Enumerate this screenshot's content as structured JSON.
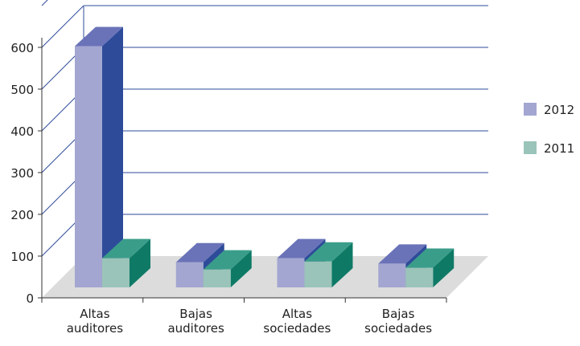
{
  "chart_data": {
    "type": "bar",
    "title": "",
    "xlabel": "",
    "ylabel": "",
    "categories": [
      "Altas auditores",
      "Bajas auditores",
      "Altas sociedades",
      "Bajas sociedades"
    ],
    "category_lines": [
      [
        "Altas",
        "auditores"
      ],
      [
        "Bajas",
        "auditores"
      ],
      [
        "Altas",
        "sociedades"
      ],
      [
        "Bajas",
        "sociedades"
      ]
    ],
    "series": [
      {
        "name": "2012",
        "values": [
          578,
          60,
          70,
          57
        ],
        "colors": {
          "front": "#a3a6d0",
          "side": "#2e4b9a",
          "top": "#6a73b8"
        }
      },
      {
        "name": "2011",
        "values": [
          70,
          43,
          62,
          47
        ],
        "colors": {
          "front": "#9ac4b9",
          "side": "#0e7a66",
          "top": "#3a9d8a"
        }
      }
    ],
    "ylim": [
      0,
      600
    ],
    "yticks": [
      "0",
      "100",
      "200",
      "300",
      "400",
      "500",
      "600"
    ],
    "three_d": true,
    "grid": true,
    "legend_position": "right",
    "colors": {
      "grid": "#2e4b9a",
      "floor": "#dcdcdc",
      "axis": "#333333"
    }
  }
}
